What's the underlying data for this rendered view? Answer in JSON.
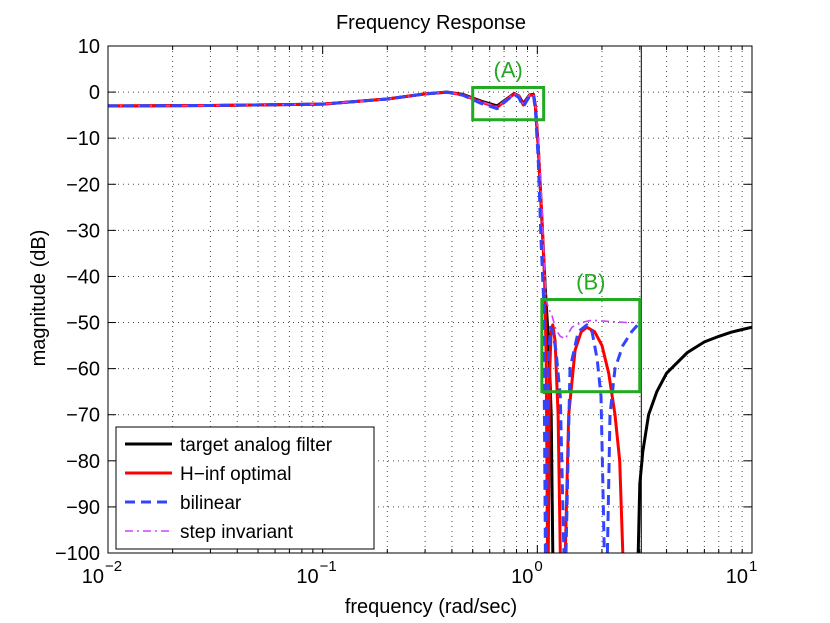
{
  "chart_data": {
    "type": "line",
    "title": "Frequency Response",
    "xlabel": "frequency (rad/sec)",
    "ylabel": "magnitude (dB)",
    "xscale": "log",
    "xlim": [
      0.01,
      10
    ],
    "ylim": [
      -100,
      10
    ],
    "grid": true,
    "x_ticks": [
      {
        "base": "10",
        "exp": "−2"
      },
      {
        "base": "10",
        "exp": "−1"
      },
      {
        "base": "10",
        "exp": "0"
      },
      {
        "base": "10",
        "exp": "1"
      }
    ],
    "y_tick_labels": [
      "10",
      "0",
      "−10",
      "−20",
      "−30",
      "−40",
      "−50",
      "−60",
      "−70",
      "−80",
      "−90",
      "−100"
    ],
    "y_tick_values": [
      10,
      0,
      -10,
      -20,
      -30,
      -40,
      -50,
      -60,
      -70,
      -80,
      -90,
      -100
    ],
    "legend_position": "bottom-left",
    "series": [
      {
        "name": "target analog filter",
        "color": "#000000",
        "style": "solid",
        "segments": [
          [
            [
              0.01,
              -3
            ],
            [
              0.03,
              -2.9
            ],
            [
              0.1,
              -2.6
            ],
            [
              0.2,
              -1.5
            ],
            [
              0.3,
              -0.4
            ],
            [
              0.38,
              0
            ],
            [
              0.45,
              -0.5
            ],
            [
              0.55,
              -2
            ],
            [
              0.65,
              -3
            ],
            [
              0.72,
              -1.5
            ],
            [
              0.78,
              -0.3
            ],
            [
              0.82,
              -0.8
            ],
            [
              0.86,
              -2.5
            ],
            [
              0.92,
              -0.6
            ],
            [
              0.96,
              -0.5
            ],
            [
              0.98,
              -3
            ],
            [
              1.01,
              -12
            ],
            [
              1.05,
              -28
            ],
            [
              1.09,
              -43
            ],
            [
              1.13,
              -55
            ],
            [
              1.16,
              -70
            ],
            [
              1.18,
              -100
            ]
          ],
          [
            [
              2.95,
              -100
            ],
            [
              3.0,
              -85
            ],
            [
              3.1,
              -78
            ],
            [
              3.3,
              -70
            ],
            [
              3.6,
              -65
            ],
            [
              4.0,
              -61
            ],
            [
              5.0,
              -56.5
            ],
            [
              6.0,
              -54.2
            ],
            [
              7.0,
              -53
            ],
            [
              8.0,
              -52.1
            ],
            [
              9.0,
              -51.5
            ],
            [
              10.0,
              -51
            ]
          ]
        ]
      },
      {
        "name": "H−inf optimal",
        "color": "#ff0000",
        "style": "solid",
        "segments": [
          [
            [
              0.01,
              -3
            ],
            [
              0.03,
              -2.9
            ],
            [
              0.1,
              -2.6
            ],
            [
              0.2,
              -1.5
            ],
            [
              0.3,
              -0.4
            ],
            [
              0.38,
              0
            ],
            [
              0.45,
              -0.6
            ],
            [
              0.55,
              -2.2
            ],
            [
              0.65,
              -3.3
            ],
            [
              0.72,
              -1.6
            ],
            [
              0.78,
              -0.4
            ],
            [
              0.82,
              -0.9
            ],
            [
              0.86,
              -2.8
            ],
            [
              0.92,
              -0.7
            ],
            [
              0.96,
              -0.6
            ],
            [
              0.98,
              -3
            ],
            [
              1.01,
              -12
            ],
            [
              1.05,
              -27
            ],
            [
              1.08,
              -40
            ],
            [
              1.1,
              -58
            ],
            [
              1.115,
              -100
            ]
          ],
          [
            [
              1.125,
              -100
            ],
            [
              1.14,
              -62
            ],
            [
              1.16,
              -51.5
            ],
            [
              1.18,
              -50.5
            ],
            [
              1.21,
              -54
            ],
            [
              1.25,
              -70
            ],
            [
              1.28,
              -100
            ]
          ],
          [
            [
              1.35,
              -100
            ],
            [
              1.4,
              -70
            ],
            [
              1.5,
              -56
            ],
            [
              1.6,
              -52
            ],
            [
              1.7,
              -51
            ],
            [
              1.85,
              -52
            ],
            [
              2.0,
              -55
            ],
            [
              2.15,
              -61
            ],
            [
              2.3,
              -70
            ],
            [
              2.42,
              -80
            ],
            [
              2.5,
              -100
            ]
          ]
        ]
      },
      {
        "name": "bilinear",
        "color": "#3344ff",
        "style": "dashed",
        "segments": [
          [
            [
              0.01,
              -3
            ],
            [
              0.03,
              -2.9
            ],
            [
              0.1,
              -2.6
            ],
            [
              0.2,
              -1.5
            ],
            [
              0.3,
              -0.4
            ],
            [
              0.38,
              0
            ],
            [
              0.45,
              -0.7
            ],
            [
              0.55,
              -2.5
            ],
            [
              0.65,
              -3.6
            ],
            [
              0.72,
              -1.8
            ],
            [
              0.78,
              -0.5
            ],
            [
              0.82,
              -1.2
            ],
            [
              0.86,
              -3.2
            ],
            [
              0.92,
              -0.9
            ],
            [
              0.96,
              -0.7
            ],
            [
              0.98,
              -4
            ],
            [
              1.01,
              -15
            ],
            [
              1.04,
              -32
            ],
            [
              1.07,
              -45
            ],
            [
              1.09,
              -100
            ]
          ],
          [
            [
              1.1,
              -100
            ],
            [
              1.12,
              -60
            ],
            [
              1.15,
              -51
            ],
            [
              1.18,
              -52
            ],
            [
              1.22,
              -56
            ],
            [
              1.28,
              -66
            ],
            [
              1.33,
              -100
            ]
          ],
          [
            [
              1.36,
              -100
            ],
            [
              1.42,
              -60
            ],
            [
              1.55,
              -52
            ],
            [
              1.7,
              -50.5
            ],
            [
              1.8,
              -52
            ],
            [
              1.9,
              -58
            ],
            [
              1.98,
              -66
            ],
            [
              2.05,
              -100
            ]
          ],
          [
            [
              2.12,
              -100
            ],
            [
              2.18,
              -70
            ],
            [
              2.3,
              -60
            ],
            [
              2.5,
              -55
            ],
            [
              2.75,
              -52
            ],
            [
              3.0,
              -50
            ]
          ]
        ]
      },
      {
        "name": "step invariant",
        "color": "#cc44ff",
        "style": "dashdot",
        "segments": [
          [
            [
              0.01,
              -3
            ],
            [
              0.03,
              -2.9
            ],
            [
              0.1,
              -2.6
            ],
            [
              0.2,
              -1.5
            ],
            [
              0.3,
              -0.4
            ],
            [
              0.38,
              0
            ],
            [
              0.45,
              -0.6
            ],
            [
              0.55,
              -2.1
            ],
            [
              0.65,
              -3.2
            ],
            [
              0.72,
              -1.5
            ],
            [
              0.78,
              -0.3
            ],
            [
              0.82,
              -0.8
            ],
            [
              0.86,
              -2.6
            ],
            [
              0.92,
              -0.6
            ],
            [
              0.96,
              -0.5
            ],
            [
              0.98,
              -2.5
            ],
            [
              1.01,
              -10
            ],
            [
              1.05,
              -25
            ],
            [
              1.08,
              -38
            ],
            [
              1.1,
              -45
            ],
            [
              1.13,
              -47
            ],
            [
              1.17,
              -48.5
            ],
            [
              1.22,
              -51.5
            ],
            [
              1.28,
              -53
            ],
            [
              1.35,
              -53.5
            ],
            [
              1.45,
              -51
            ],
            [
              1.6,
              -50
            ],
            [
              1.8,
              -49.5
            ],
            [
              2.2,
              -49.8
            ],
            [
              2.6,
              -50
            ],
            [
              3.0,
              -50
            ]
          ]
        ]
      }
    ],
    "annotations": [
      {
        "label": "(A)",
        "x_range": [
          0.5,
          1.07
        ],
        "y_range": [
          -6,
          1
        ],
        "color": "#22aa22"
      },
      {
        "label": "(B)",
        "x_range": [
          1.05,
          3.0
        ],
        "y_range": [
          -65,
          -45
        ],
        "color": "#22aa22"
      }
    ],
    "vlines": [
      {
        "x": 3.05,
        "color": "#000000"
      }
    ]
  }
}
